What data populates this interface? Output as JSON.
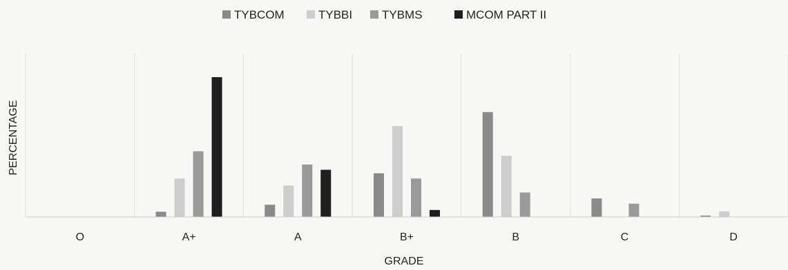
{
  "chart_data": {
    "type": "bar",
    "title": "",
    "xlabel": "GRADE",
    "ylabel": "PERCENTAGE",
    "ylim": [
      0,
      40
    ],
    "grid": "vertical separators between categories",
    "legend_position": "top-center",
    "categories": [
      "O",
      "A+",
      "A",
      "B+",
      "B",
      "C",
      "D"
    ],
    "series": [
      {
        "name": "TYBCOM",
        "color": "#8a8a8a",
        "values": [
          0,
          1.5,
          3.5,
          12.5,
          30,
          5.3,
          0.4
        ]
      },
      {
        "name": "TYBBI",
        "color": "#cdcdcd",
        "values": [
          0,
          11,
          9,
          26,
          17.5,
          0,
          1.6
        ]
      },
      {
        "name": "TYBMS",
        "color": "#9a9a9a",
        "values": [
          0,
          18.8,
          15,
          11,
          7,
          3.8,
          0
        ]
      },
      {
        "name": "MCOM PART II",
        "color": "#1e1e1e",
        "values": [
          0,
          40,
          13.5,
          2,
          0,
          0,
          0
        ]
      }
    ]
  }
}
